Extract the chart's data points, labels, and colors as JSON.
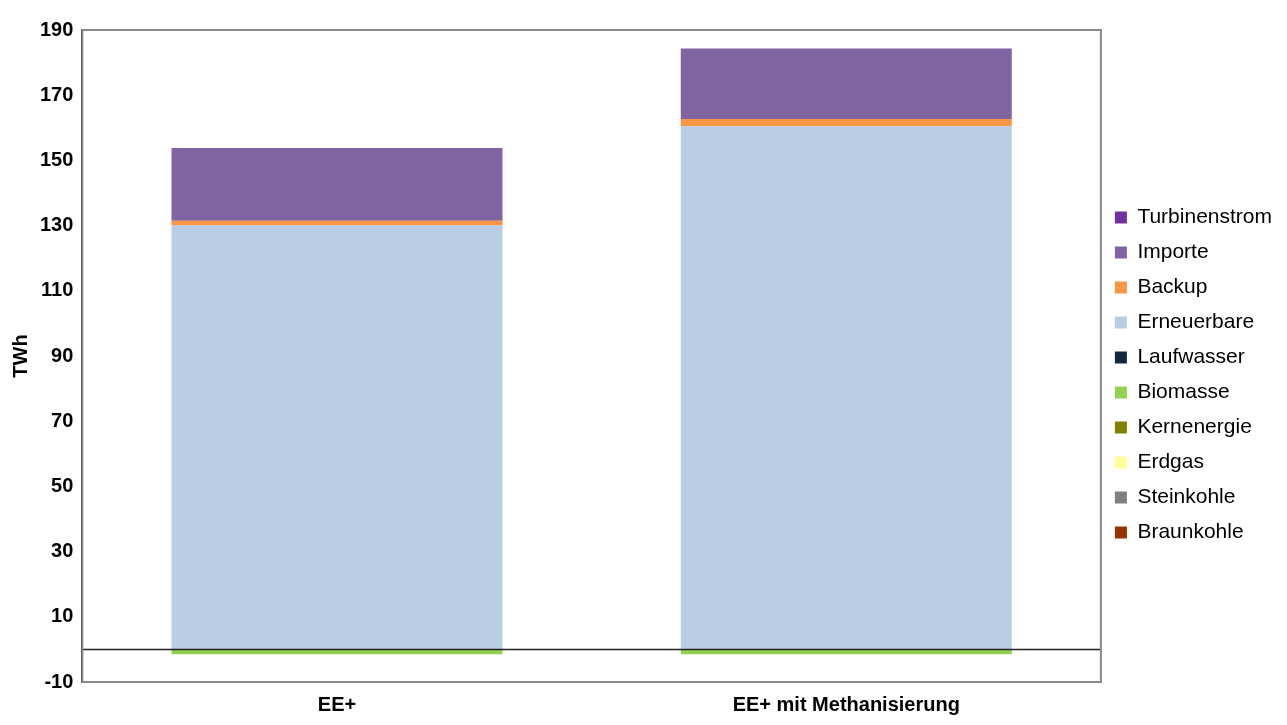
{
  "chart_data": {
    "type": "bar",
    "stacked": true,
    "ylabel": "TWh",
    "categories": [
      "EE+",
      "EE+ mit Methanisierung"
    ],
    "ylim": [
      -10,
      190
    ],
    "yticks": [
      -10,
      10,
      30,
      50,
      70,
      90,
      110,
      130,
      150,
      170,
      190
    ],
    "grid": false,
    "legend": "right",
    "series": [
      {
        "name": "Braunkohle",
        "color": "#993300",
        "values": [
          0,
          0
        ]
      },
      {
        "name": "Steinkohle",
        "color": "#808080",
        "values": [
          0,
          0
        ]
      },
      {
        "name": "Erdgas",
        "color": "#ffff99",
        "values": [
          0,
          0
        ]
      },
      {
        "name": "Kernenergie",
        "color": "#808000",
        "values": [
          0,
          0
        ]
      },
      {
        "name": "Biomasse",
        "color": "#92d050",
        "values": [
          -1.5,
          -1.5
        ]
      },
      {
        "name": "Laufwasser",
        "color": "#132640",
        "values": [
          0,
          0
        ]
      },
      {
        "name": "Erneuerbare",
        "color": "#b9cde5",
        "values": [
          130,
          160.5
        ]
      },
      {
        "name": "Backup",
        "color": "#f79646",
        "values": [
          1.5,
          2.2
        ]
      },
      {
        "name": "Importe",
        "color": "#8064a2",
        "values": [
          22.3,
          21.6
        ]
      },
      {
        "name": "Turbinenstrom",
        "color": "#7030a0",
        "values": [
          0,
          0
        ]
      }
    ]
  }
}
